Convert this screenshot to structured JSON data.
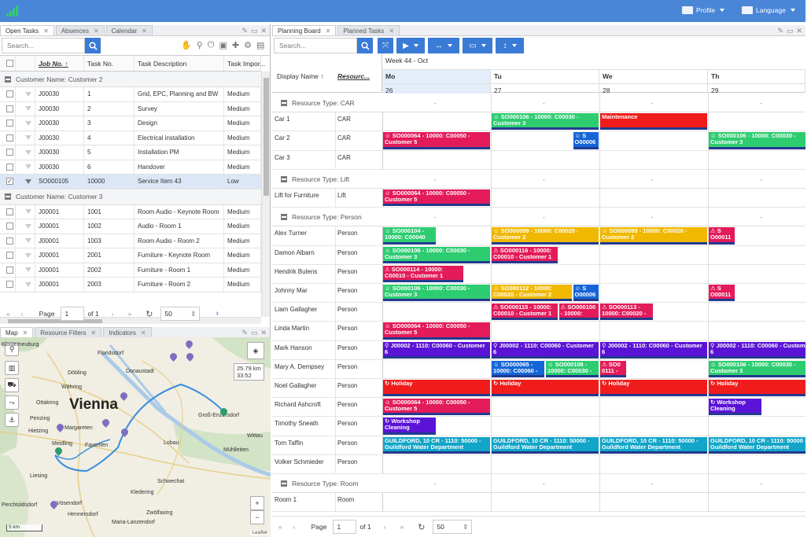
{
  "topbar": {
    "profile": "Profile",
    "language": "Language"
  },
  "left_tabs": [
    "Open Tasks",
    "Absences",
    "Calendar"
  ],
  "task_search": {
    "placeholder": "Search..."
  },
  "task_columns": [
    "Job No.",
    "Task No.",
    "Task Description",
    "Task Impor..."
  ],
  "task_groups": [
    {
      "label": "Customer Name: Customer 2",
      "rows": [
        {
          "job": "J00030",
          "task": "1",
          "desc": "Grid, EPC, Planning and BW",
          "imp": "Medium"
        },
        {
          "job": "J00030",
          "task": "2",
          "desc": "Survey",
          "imp": "Medium"
        },
        {
          "job": "J00030",
          "task": "3",
          "desc": "Design",
          "imp": "Medium"
        },
        {
          "job": "J00030",
          "task": "4",
          "desc": "Electrical installation",
          "imp": "Medium"
        },
        {
          "job": "J00030",
          "task": "5",
          "desc": "Installation PM",
          "imp": "Medium"
        },
        {
          "job": "J00030",
          "task": "6",
          "desc": "Handover",
          "imp": "Medium"
        },
        {
          "job": "SO000105",
          "task": "10000",
          "desc": "Service Item 43",
          "imp": "Low",
          "selected": true
        }
      ]
    },
    {
      "label": "Customer Name: Customer 3",
      "rows": [
        {
          "job": "J00001",
          "task": "1001",
          "desc": "Room Audio - Keynote Room",
          "imp": "Medium"
        },
        {
          "job": "J00001",
          "task": "1002",
          "desc": "Audio - Room 1",
          "imp": "Medium"
        },
        {
          "job": "J00001",
          "task": "1003",
          "desc": "Room Audio - Room 2",
          "imp": "Medium"
        },
        {
          "job": "J00001",
          "task": "2001",
          "desc": "Furniture - Keynote Room",
          "imp": "Medium"
        },
        {
          "job": "J00001",
          "task": "2002",
          "desc": "Furniture - Room 1",
          "imp": "Medium"
        },
        {
          "job": "J00001",
          "task": "2003",
          "desc": "Furniture - Room 2",
          "imp": "Medium"
        }
      ]
    }
  ],
  "task_pager": {
    "page_label": "Page",
    "page": "1",
    "of": "of 1",
    "size": "50"
  },
  "map_tabs": [
    "Map",
    "Resource Filters",
    "Indicators"
  ],
  "map": {
    "city": "Vienna",
    "distance": "25.79 km",
    "time": "33:52",
    "scale": "5 km",
    "attribution": "Leaflet",
    "labels": [
      "Floridsdorf",
      "Donaustadt",
      "Döbling",
      "Währing",
      "Ottakring",
      "Penzing",
      "Hietzing",
      "Margareten",
      "Favoriten",
      "Meidling",
      "Liesing",
      "Schwechat",
      "Kledering",
      "Vösendorf",
      "Hennersdorf",
      "Zwölfaxing",
      "Maria-Lanzendorf",
      "Groß-Enzersdorf",
      "Mühlleiten",
      "Wittau",
      "Lobau",
      "Perchtoldsdorf",
      "Klosterneuburg"
    ]
  },
  "right_tabs": [
    "Planning Board",
    "Planned Tasks"
  ],
  "board_search": {
    "placeholder": "Search..."
  },
  "board_header": {
    "display_name": "Display Name",
    "resource": "Resourc...",
    "week": "Week 44 - Oct"
  },
  "days": [
    {
      "name": "Mo",
      "num": "26"
    },
    {
      "name": "Tu",
      "num": "27"
    },
    {
      "name": "We",
      "num": "28"
    },
    {
      "name": "Th",
      "num": "29"
    }
  ],
  "dash": "-",
  "resource_groups": [
    {
      "label": "Resource Type: CAR",
      "rows": [
        {
          "name": "Car 1",
          "type": "CAR"
        },
        {
          "name": "Car 2",
          "type": "CAR"
        },
        {
          "name": "Car 3",
          "type": "CAR"
        }
      ]
    },
    {
      "label": "Resource Type: Lift",
      "rows": [
        {
          "name": "Lift for Furniture",
          "type": "Lift"
        }
      ]
    },
    {
      "label": "Resource Type: Person",
      "rows": [
        {
          "name": "Alex Turner",
          "type": "Person"
        },
        {
          "name": "Damon Albarn",
          "type": "Person"
        },
        {
          "name": "Hendrik Bulens",
          "type": "Person"
        },
        {
          "name": "Johnny Mar",
          "type": "Person"
        },
        {
          "name": "Liam Gallagher",
          "type": "Person"
        },
        {
          "name": "Linda Martin",
          "type": "Person"
        },
        {
          "name": "Mark Hanson",
          "type": "Person"
        },
        {
          "name": "Mary A. Dempsey",
          "type": "Person"
        },
        {
          "name": "Noel Gallagher",
          "type": "Person"
        },
        {
          "name": "Richard Ashcroft",
          "type": "Person"
        },
        {
          "name": "Timothy Sneath",
          "type": "Person"
        },
        {
          "name": "Tom Taffin",
          "type": "Person"
        },
        {
          "name": "Volker Schmieder",
          "type": "Person"
        }
      ]
    },
    {
      "label": "Resource Type: Room",
      "rows": [
        {
          "name": "Room 1",
          "type": "Room"
        }
      ]
    }
  ],
  "events": [
    {
      "row": "Car 1",
      "l1": "☺ SO000106 - 10000: C00030 -",
      "l2": "Customer 3",
      "color": "#2ecc71",
      "day": 1,
      "span": 1.0
    },
    {
      "row": "Car 1",
      "l1": "Maintenance",
      "l2": "",
      "color": "#f01c1c",
      "day": 2,
      "span": 1.0
    },
    {
      "row": "Car 2",
      "l1": "☺ SO000064 - 10000: C00050 -",
      "l2": "Customer 5",
      "color": "#e31b5a",
      "day": 0,
      "span": 1.0
    },
    {
      "row": "Car 2",
      "l1": "☺ S",
      "l2": "O00006",
      "color": "#1565d8",
      "day": 1.75,
      "span": 0.25
    },
    {
      "row": "Car 2",
      "l1": "☺ SO000106 - 10000: C00030 -",
      "l2": "Customer 3",
      "color": "#2ecc71",
      "day": 3,
      "span": 1.0
    },
    {
      "row": "Lift for Furniture",
      "l1": "☺ SO000064 - 10000: C00050 -",
      "l2": "Customer 5",
      "color": "#e31b5a",
      "day": 0,
      "span": 1.0
    },
    {
      "row": "Alex Turner",
      "l1": "☺ SO000104 -",
      "l2": "10000: C00040",
      "color": "#2ecc71",
      "day": 0,
      "span": 0.5
    },
    {
      "row": "Alex Turner",
      "l1": "☺ SO000099 - 10000: C00020 -",
      "l2": "Customer 2",
      "color": "#f0b800",
      "day": 1,
      "span": 1.0
    },
    {
      "row": "Alex Turner",
      "l1": "☺ SO000099 - 10000: C00020 -",
      "l2": "Customer 2",
      "color": "#f0b800",
      "day": 2,
      "span": 1.0
    },
    {
      "row": "Alex Turner",
      "l1": "⚠ S",
      "l2": "O00011",
      "color": "#e31b5a",
      "day": 3,
      "span": 0.25
    },
    {
      "row": "Damon Albarn",
      "l1": "☺ SO000106 - 10000: C00030 -",
      "l2": "Customer 3",
      "color": "#2ecc71",
      "day": 0,
      "span": 1.0
    },
    {
      "row": "Damon Albarn",
      "l1": "⚠ SO000116 - 10000:",
      "l2": "C00010 - Customer 1",
      "color": "#e31b5a",
      "day": 1,
      "span": 0.62
    },
    {
      "row": "Hendrik Bulens",
      "l1": "⚠ SO000114 - 10000:",
      "l2": "C00010 - Customer 1",
      "color": "#e31b5a",
      "day": 0,
      "span": 0.75
    },
    {
      "row": "Johnny Mar",
      "l1": "☺ SO000106 - 10000: C00030 -",
      "l2": "Customer 3",
      "color": "#2ecc71",
      "day": 0,
      "span": 1.0
    },
    {
      "row": "Johnny Mar",
      "l1": "☺ SO000112 - 10000:",
      "l2": "C00020 - Customer 2",
      "color": "#f0b800",
      "day": 1,
      "span": 0.75
    },
    {
      "row": "Johnny Mar",
      "l1": "☺ S",
      "l2": "O00006",
      "color": "#1565d8",
      "day": 1.75,
      "span": 0.25
    },
    {
      "row": "Johnny Mar",
      "l1": "⚠ S",
      "l2": "O00011",
      "color": "#e31b5a",
      "day": 3,
      "span": 0.25
    },
    {
      "row": "Liam Gallagher",
      "l1": "⚠ SO000115 - 10000:",
      "l2": "C00010 - Customer 1",
      "color": "#e31b5a",
      "day": 1,
      "span": 0.62
    },
    {
      "row": "Liam Gallagher",
      "l1": "⚠ SO000100",
      "l2": "- 10000:",
      "color": "#e31b5a",
      "day": 1.62,
      "span": 0.38
    },
    {
      "row": "Liam Gallagher",
      "l1": "⚠ SO000113 -",
      "l2": "10000: C00020 -",
      "color": "#e31b5a",
      "day": 2,
      "span": 0.5
    },
    {
      "row": "Linda Martin",
      "l1": "☺ SO000064 - 10000: C00050 -",
      "l2": "Customer 5",
      "color": "#e31b5a",
      "day": 0,
      "span": 1.0
    },
    {
      "row": "Mark Hanson",
      "l1": "⚲ J00002 - 1110: C00060 - Customer",
      "l2": "6",
      "color": "#5b13d6",
      "day": 0,
      "span": 1.0
    },
    {
      "row": "Mark Hanson",
      "l1": "⚲ J00002 - 1110: C00060 - Customer",
      "l2": "6",
      "color": "#5b13d6",
      "day": 1,
      "span": 1.0
    },
    {
      "row": "Mark Hanson",
      "l1": "⚲ J00002 - 1110: C00060 - Customer",
      "l2": "6",
      "color": "#5b13d6",
      "day": 2,
      "span": 1.0
    },
    {
      "row": "Mark Hanson",
      "l1": "⚲ J00002 - 1110: C00060 - Customer",
      "l2": "6",
      "color": "#5b13d6",
      "day": 3,
      "span": 1.0
    },
    {
      "row": "Mary A. Dempsey",
      "l1": "☺ SO000065 -",
      "l2": "10000: C00060 -",
      "color": "#1565d8",
      "day": 1,
      "span": 0.5
    },
    {
      "row": "Mary A. Dempsey",
      "l1": "☺ SO000108 -",
      "l2": "10000: C00030 -",
      "color": "#2ecc71",
      "day": 1.5,
      "span": 0.5
    },
    {
      "row": "Mary A. Dempsey",
      "l1": "⚠ SO0",
      "l2": "0111 -",
      "color": "#e31b5a",
      "day": 2,
      "span": 0.25
    },
    {
      "row": "Mary A. Dempsey",
      "l1": "☺ SO000106 - 10000: C00030 -",
      "l2": "Customer 3",
      "color": "#2ecc71",
      "day": 3,
      "span": 1.0
    },
    {
      "row": "Noel Gallagher",
      "l1": "↻ Holiday",
      "l2": "",
      "color": "#f01c1c",
      "day": 0,
      "span": 1.0
    },
    {
      "row": "Noel Gallagher",
      "l1": "↻ Holiday",
      "l2": "",
      "color": "#f01c1c",
      "day": 1,
      "span": 1.0
    },
    {
      "row": "Noel Gallagher",
      "l1": "↻ Holiday",
      "l2": "",
      "color": "#f01c1c",
      "day": 2,
      "span": 1.0
    },
    {
      "row": "Noel Gallagher",
      "l1": "↻ Holiday",
      "l2": "",
      "color": "#f01c1c",
      "day": 3,
      "span": 1.0
    },
    {
      "row": "Richard Ashcroft",
      "l1": "☺ SO000064 - 10000: C00050 -",
      "l2": "Customer 5",
      "color": "#e31b5a",
      "day": 0,
      "span": 1.0
    },
    {
      "row": "Richard Ashcroft",
      "l1": "↻ Workshop",
      "l2": "Cleaning",
      "color": "#5b13d6",
      "day": 3,
      "span": 0.5
    },
    {
      "row": "Timothy Sneath",
      "l1": "↻ Workshop",
      "l2": "Cleaning",
      "color": "#5b13d6",
      "day": 0,
      "span": 0.5
    },
    {
      "row": "Tom Taffin",
      "l1": "GUILDFORD, 10 CR - 1110: 50000 -",
      "l2": "Guildford Water Department",
      "color": "#12a5c8",
      "day": 0,
      "span": 1.0
    },
    {
      "row": "Tom Taffin",
      "l1": "GUILDFORD, 10 CR - 1110: 50000 -",
      "l2": "Guildford Water Department",
      "color": "#12a5c8",
      "day": 1,
      "span": 1.0
    },
    {
      "row": "Tom Taffin",
      "l1": "GUILDFORD, 10 CR - 1110: 50000 -",
      "l2": "Guildford Water Department",
      "color": "#12a5c8",
      "day": 2,
      "span": 1.0
    },
    {
      "row": "Tom Taffin",
      "l1": "GUILDFORD, 10 CR - 1110: 50000 -",
      "l2": "Guildford Water Department",
      "color": "#12a5c8",
      "day": 3,
      "span": 1.0
    }
  ],
  "board_pager": {
    "page_label": "Page",
    "page": "1",
    "of": "of 1",
    "size": "50"
  },
  "colors": {
    "accent": "#3a7bd5",
    "topbar": "#4a86d8"
  }
}
